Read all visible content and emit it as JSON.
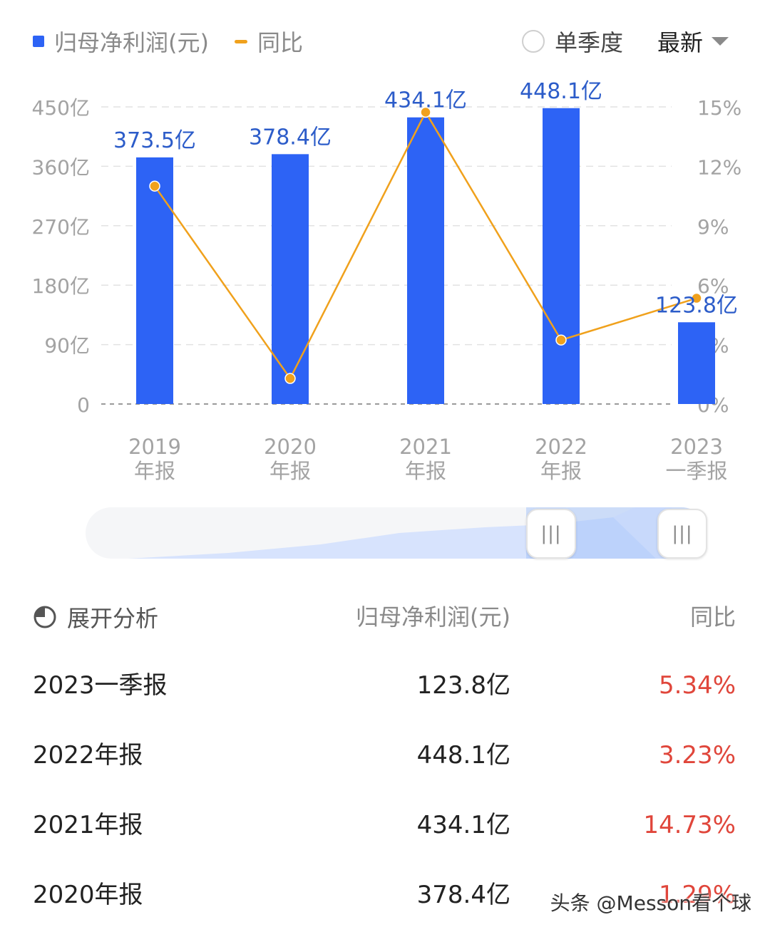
{
  "legend": {
    "bar_label": "归母净利润(元)",
    "line_label": "同比"
  },
  "controls": {
    "quarter_label": "单季度",
    "sort_label": "最新"
  },
  "colors": {
    "bar": "#2d63f5",
    "line": "#f0a11c",
    "negative_text": "#e0463b"
  },
  "chart_data": {
    "type": "bar",
    "categories": [
      [
        "2019",
        "年报"
      ],
      [
        "2020",
        "年报"
      ],
      [
        "2021",
        "年报"
      ],
      [
        "2022",
        "年报"
      ],
      [
        "2023",
        "一季报"
      ]
    ],
    "series": [
      {
        "name": "归母净利润(元)",
        "type": "bar",
        "axis": "left",
        "values": [
          373.5,
          378.4,
          434.1,
          448.1,
          123.8
        ],
        "labels": [
          "373.5亿",
          "378.4亿",
          "434.1亿",
          "448.1亿",
          "123.8亿"
        ]
      },
      {
        "name": "同比",
        "type": "line",
        "axis": "right",
        "values": [
          11.0,
          1.29,
          14.73,
          3.23,
          5.34
        ]
      }
    ],
    "y_left": {
      "min": 0,
      "max": 450,
      "ticks": [
        0,
        90,
        180,
        270,
        360,
        450
      ],
      "tick_labels": [
        "0",
        "90亿",
        "180亿",
        "270亿",
        "360亿",
        "450亿"
      ]
    },
    "y_right": {
      "min": 0,
      "max": 15,
      "ticks": [
        0,
        3,
        6,
        9,
        12,
        15
      ],
      "tick_labels": [
        "0%",
        "3%",
        "6%",
        "9%",
        "12%",
        "15%"
      ]
    },
    "grid": true
  },
  "table": {
    "header": {
      "expand": "展开分析",
      "col_value": "归母净利润(元)",
      "col_yoy": "同比"
    },
    "rows": [
      {
        "period": "2023一季报",
        "value": "123.8亿",
        "yoy": "5.34%"
      },
      {
        "period": "2022年报",
        "value": "448.1亿",
        "yoy": "3.23%"
      },
      {
        "period": "2021年报",
        "value": "434.1亿",
        "yoy": "14.73%"
      },
      {
        "period": "2020年报",
        "value": "378.4亿",
        "yoy": "1.29%"
      }
    ]
  },
  "watermark": "头条 @Messon看个球"
}
